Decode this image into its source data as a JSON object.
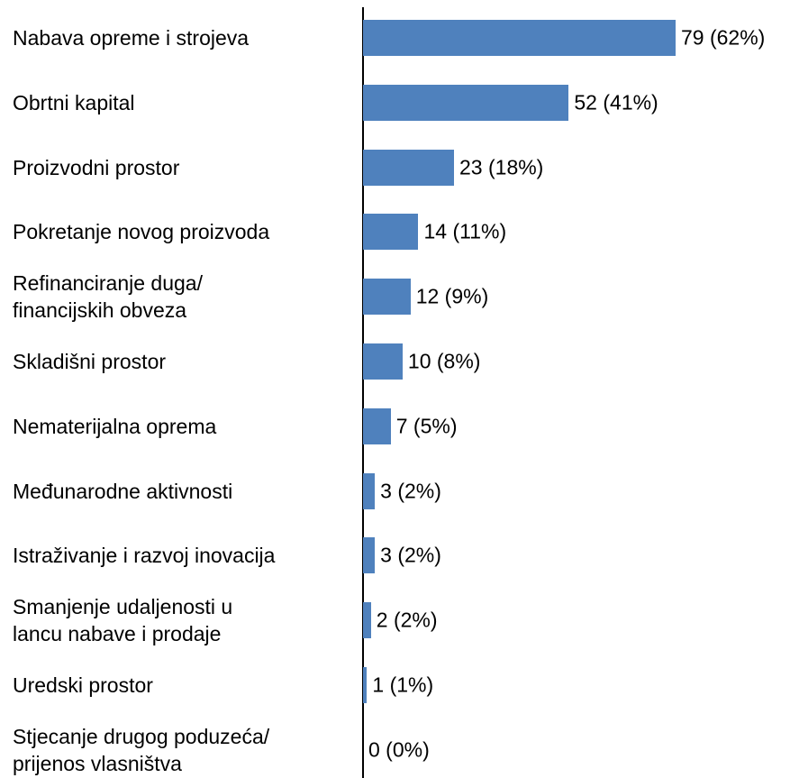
{
  "chart_data": {
    "type": "bar",
    "orientation": "horizontal",
    "color": "#4f81bd",
    "categories": [
      "Nabava opreme i strojeva",
      "Obrtni kapital",
      "Proizvodni prostor",
      "Pokretanje novog proizvoda",
      "Refinanciranje duga/\nfinancijskih obveza",
      "Skladišni prostor",
      "Nematerijalna oprema",
      "Međunarodne aktivnosti",
      "Istraživanje i razvoj inovacija",
      "Smanjenje udaljenosti u\nlancu nabave i prodaje",
      "Uredski prostor",
      "Stjecanje drugog poduzeća/\nprijenos vlasništva"
    ],
    "values": [
      79,
      52,
      23,
      14,
      12,
      10,
      7,
      3,
      3,
      2,
      1,
      0
    ],
    "value_labels": [
      "79 (62%)",
      "52 (41%)",
      "23 (18%)",
      "14 (11%)",
      "12 (9%)",
      "10 (8%)",
      "7 (5%)",
      "3 (2%)",
      "3 (2%)",
      "2 (2%)",
      "1 (1%)",
      "0 (0%)"
    ]
  }
}
